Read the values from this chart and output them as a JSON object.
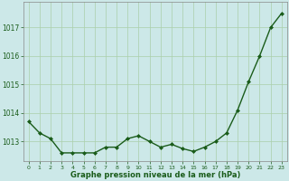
{
  "x": [
    0,
    1,
    2,
    3,
    4,
    5,
    6,
    7,
    8,
    9,
    10,
    11,
    12,
    13,
    14,
    15,
    16,
    17,
    18,
    19,
    20,
    21,
    22,
    23
  ],
  "y": [
    1013.7,
    1013.3,
    1013.1,
    1012.6,
    1012.6,
    1012.6,
    1012.6,
    1012.8,
    1012.8,
    1013.1,
    1013.2,
    1013.0,
    1012.8,
    1012.9,
    1012.75,
    1012.65,
    1012.8,
    1013.0,
    1013.3,
    1014.1,
    1015.1,
    1016.0,
    1017.0,
    1017.5
  ],
  "line_color": "#1a5c1a",
  "marker_color": "#1a5c1a",
  "bg_color": "#cce8e8",
  "grid_color": "#aacfaa",
  "xlabel": "Graphe pression niveau de la mer (hPa)",
  "xlabel_color": "#1a5c1a",
  "tick_color": "#1a5c1a",
  "spine_color": "#888888",
  "ylim": [
    1012.3,
    1017.9
  ],
  "xlim": [
    -0.5,
    23.5
  ],
  "yticks": [
    1013,
    1014,
    1015,
    1016,
    1017
  ],
  "xtick_labels": [
    "0",
    "1",
    "2",
    "3",
    "4",
    "5",
    "6",
    "7",
    "8",
    "9",
    "10",
    "11",
    "12",
    "13",
    "14",
    "15",
    "16",
    "17",
    "18",
    "19",
    "20",
    "21",
    "22",
    "23"
  ]
}
